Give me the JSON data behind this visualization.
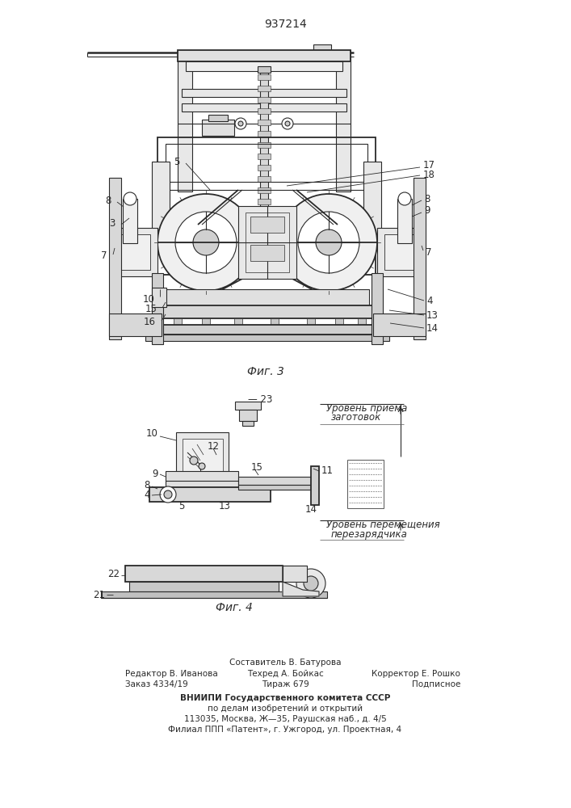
{
  "patent_number": "937214",
  "fig3_label": "Фиг. 3",
  "fig4_label": "Фиг. 4",
  "level1_line1": "Уровень приема",
  "level1_line2": "заготовок",
  "level2_line1": "Уровень перемещения",
  "level2_line2": "перезарядчика",
  "editor_line1": "Редактор В. Иванова",
  "editor_line2": "Заказ 4334/19",
  "composer_line1": "Составитель В. Батурова",
  "composer_line2": "Техред А. Бойкас",
  "composer_line3": "Тираж 679",
  "corrector_line1": "Корректор Е. Рошко",
  "corrector_line2": "Подписное",
  "vniipи_line1": "ВНИИПИ Государственного комитета СССР",
  "vniipи_line2": "по делам изобретений и открытий",
  "vniipи_line3": "113035, Москва, Ж—35, Раушская наб., д. 4/5",
  "vniipи_line4": "Филиал ППП «Патент», г. Ужгород, ул. Проектная, 4",
  "bg_color": "#ffffff",
  "line_color": "#2a2a2a"
}
